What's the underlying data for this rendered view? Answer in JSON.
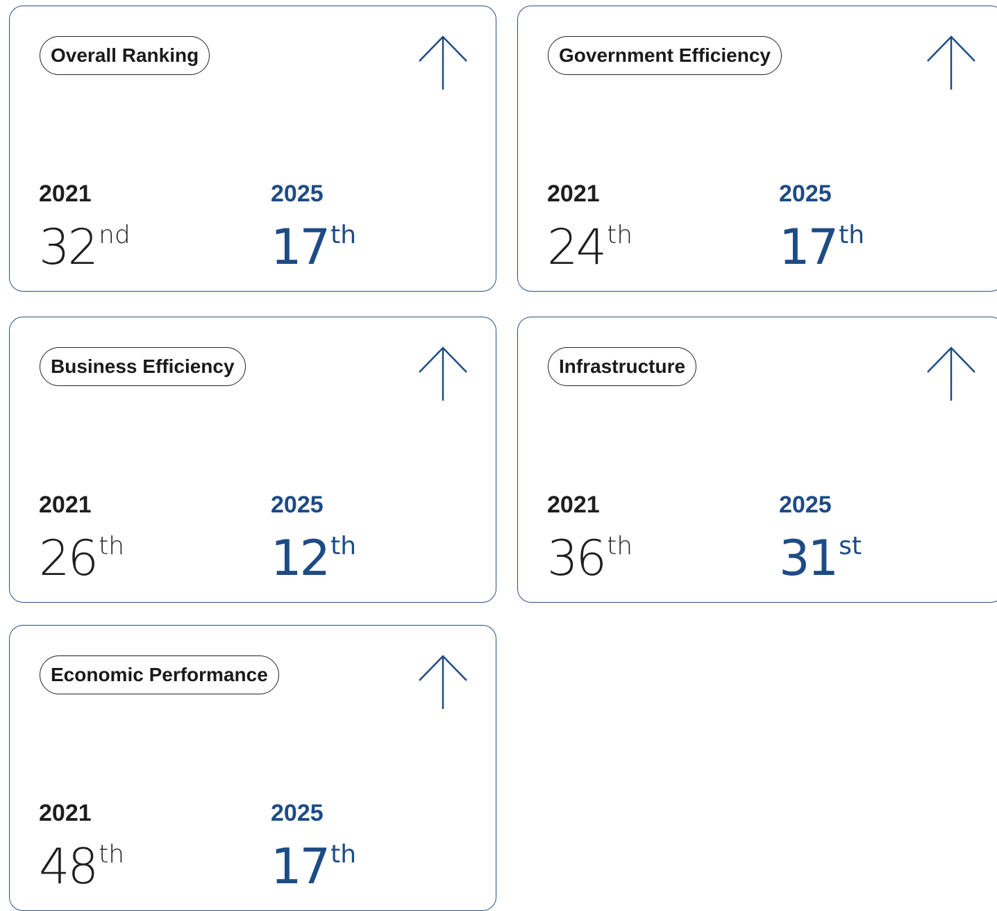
{
  "cards": [
    {
      "label": "Overall Ranking",
      "from": {
        "year": "2021",
        "rank": 32,
        "suffix": "nd"
      },
      "to": {
        "year": "2025",
        "rank": 17,
        "suffix": "th"
      }
    },
    {
      "label": "Government Efficiency",
      "from": {
        "year": "2021",
        "rank": 24,
        "suffix": "th"
      },
      "to": {
        "year": "2025",
        "rank": 17,
        "suffix": "th"
      }
    },
    {
      "label": "Business Efficiency",
      "from": {
        "year": "2021",
        "rank": 26,
        "suffix": "th"
      },
      "to": {
        "year": "2025",
        "rank": 12,
        "suffix": "th"
      }
    },
    {
      "label": "Infrastructure",
      "from": {
        "year": "2021",
        "rank": 36,
        "suffix": "th"
      },
      "to": {
        "year": "2025",
        "rank": 31,
        "suffix": "st"
      }
    },
    {
      "label": "Economic Performance",
      "from": {
        "year": "2021",
        "rank": 48,
        "suffix": "th"
      },
      "to": {
        "year": "2025",
        "rank": 17,
        "suffix": "th"
      }
    }
  ]
}
